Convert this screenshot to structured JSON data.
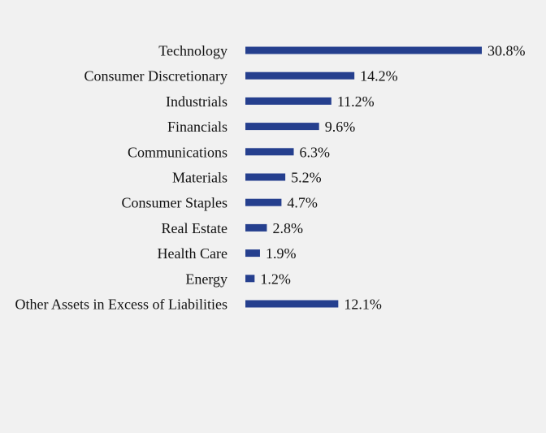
{
  "colors": {
    "background": "#f1f1f1",
    "bar": "#253f8e",
    "text": "#111111"
  },
  "chart_data": {
    "type": "bar",
    "orientation": "horizontal",
    "title": "",
    "xlabel": "",
    "ylabel": "",
    "value_suffix": "%",
    "xlim": [
      0,
      30.8
    ],
    "grid": false,
    "legend": "none",
    "categories": [
      "Technology",
      "Consumer Discretionary",
      "Industrials",
      "Financials",
      "Communications",
      "Materials",
      "Consumer Staples",
      "Real Estate",
      "Health Care",
      "Energy",
      "Other Assets in Excess of Liabilities"
    ],
    "values": [
      30.8,
      14.2,
      11.2,
      9.6,
      6.3,
      5.2,
      4.7,
      2.8,
      1.9,
      1.2,
      12.1
    ],
    "labels": [
      "30.8%",
      "14.2%",
      "11.2%",
      "9.6%",
      "6.3%",
      "5.2%",
      "4.7%",
      "2.8%",
      "1.9%",
      "1.2%",
      "12.1%"
    ]
  }
}
